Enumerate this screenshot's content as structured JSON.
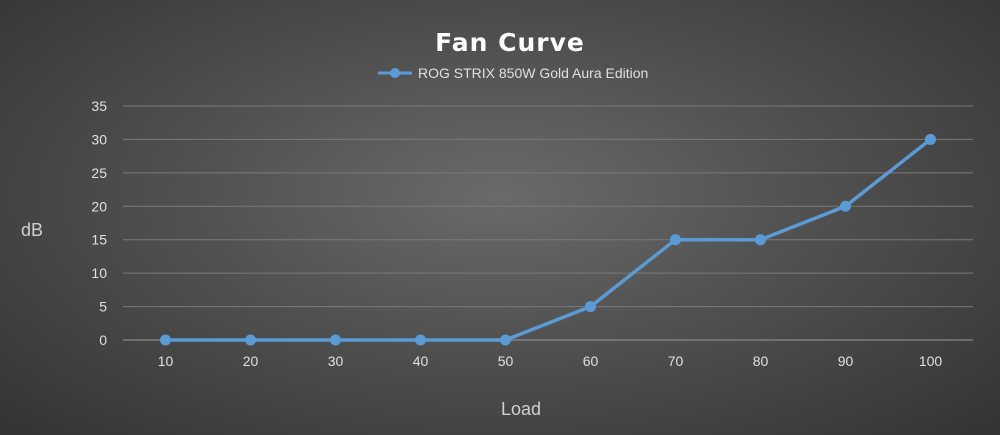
{
  "chart_data": {
    "type": "line",
    "title": "Fan Curve",
    "xlabel": "Load",
    "ylabel": "dB",
    "x": [
      10,
      20,
      30,
      40,
      50,
      60,
      70,
      80,
      90,
      100
    ],
    "series": [
      {
        "name": "ROG STRIX 850W Gold Aura Edition",
        "values": [
          0,
          0,
          0,
          0,
          0,
          5,
          15,
          15,
          20,
          30
        ]
      }
    ],
    "ylim": [
      0,
      35
    ],
    "yticks": [
      0,
      5,
      10,
      15,
      20,
      25,
      30,
      35
    ],
    "grid": true,
    "legend_position": "top-center",
    "series_color": "#5b9bd5"
  }
}
